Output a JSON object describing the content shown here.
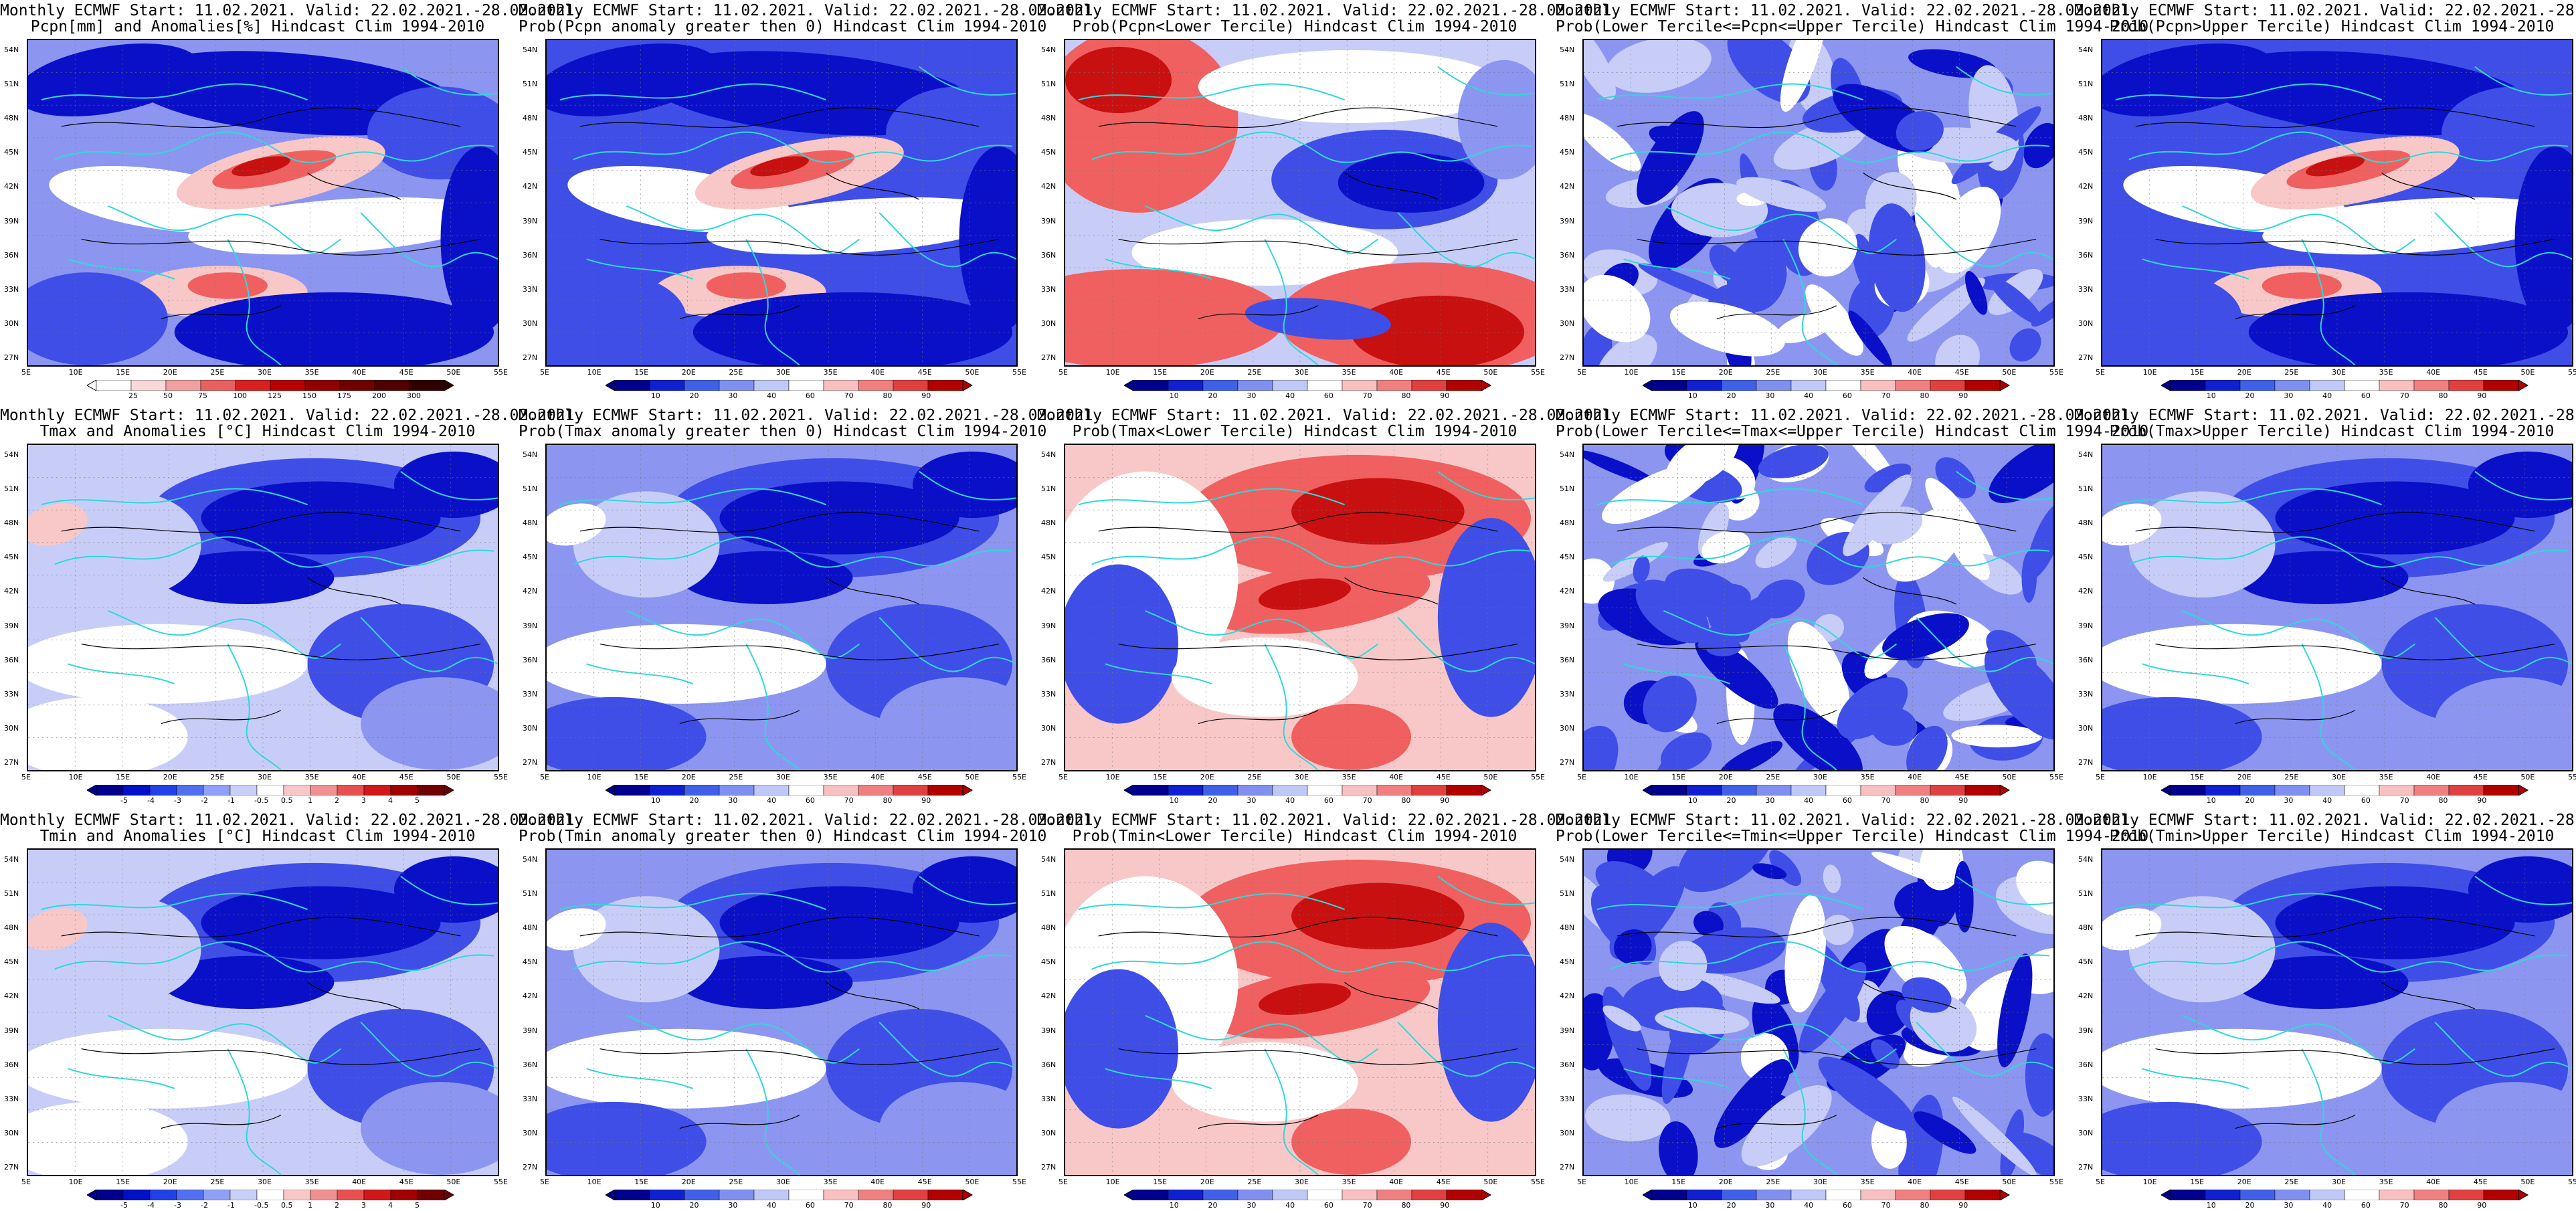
{
  "common": {
    "title_line1": "Monthly ECMWF Start: 11.02.2021. Valid: 22.02.2021.-28.02.2021.",
    "lat_labels": [
      "54N",
      "51N",
      "48N",
      "45N",
      "42N",
      "39N",
      "36N",
      "33N",
      "30N",
      "27N"
    ],
    "lon_labels": [
      "5E",
      "10E",
      "15E",
      "20E",
      "25E",
      "30E",
      "35E",
      "40E",
      "45E",
      "50E",
      "55E"
    ],
    "prob_ticks": [
      "10",
      "20",
      "30",
      "40",
      "60",
      "70",
      "80",
      "90"
    ],
    "palette": {
      "deep_blue": "#0a10c8",
      "blue": "#3f4ee6",
      "mid_blue": "#8c96f0",
      "light_blue": "#c8cdf8",
      "white": "#ffffff",
      "light_red": "#f8c8c8",
      "red": "#f06060",
      "deep_red": "#c81010",
      "coast": "#30d8d8",
      "contour": "#000000"
    }
  },
  "panels": [
    {
      "row": 0,
      "col": 0,
      "title2": "Pcpn[mm] and Anomalies[%] Hindcast Clim 1994-2010",
      "kind": "anom_pcpn",
      "ticks": [
        "25",
        "50",
        "75",
        "100",
        "125",
        "150",
        "175",
        "200",
        "300"
      ]
    },
    {
      "row": 0,
      "col": 1,
      "title2": "Prob(Pcpn anomaly greater then 0) Hindcast Clim 1994-2010",
      "kind": "prob_pos"
    },
    {
      "row": 0,
      "col": 2,
      "title2": "Prob(Pcpn<Lower Tercile) Hindcast Clim 1994-2010",
      "kind": "prob_lower_pcpn"
    },
    {
      "row": 0,
      "col": 3,
      "title2": "Prob(Lower Tercile<=Pcpn<=Upper Tercile) Hindcast Clim 1994-2010",
      "kind": "prob_mid"
    },
    {
      "row": 0,
      "col": 4,
      "title2": "Prob(Pcpn>Upper Tercile) Hindcast Clim 1994-2010",
      "kind": "prob_pos"
    },
    {
      "row": 1,
      "col": 0,
      "title2": "Tmax and Anomalies [°C] Hindcast Clim 1994-2010",
      "kind": "anom_t",
      "ticks": [
        "-5",
        "-4",
        "-3",
        "-2",
        "-1",
        "-0.5",
        "0.5",
        "1",
        "2",
        "3",
        "4",
        "5"
      ]
    },
    {
      "row": 1,
      "col": 1,
      "title2": "Prob(Tmax anomaly greater then 0) Hindcast Clim 1994-2010",
      "kind": "prob_cold"
    },
    {
      "row": 1,
      "col": 2,
      "title2": "Prob(Tmax<Lower Tercile) Hindcast Clim 1994-2010",
      "kind": "prob_lower_t"
    },
    {
      "row": 1,
      "col": 3,
      "title2": "Prob(Lower Tercile<=Tmax<=Upper Tercile) Hindcast Clim 1994-2010",
      "kind": "prob_mid"
    },
    {
      "row": 1,
      "col": 4,
      "title2": "Prob(Tmax>Upper Tercile) Hindcast Clim 1994-2010",
      "kind": "prob_cold"
    },
    {
      "row": 2,
      "col": 0,
      "title2": "Tmin and Anomalies [°C] Hindcast Clim 1994-2010",
      "kind": "anom_t",
      "ticks": [
        "-5",
        "-4",
        "-3",
        "-2",
        "-1",
        "-0.5",
        "0.5",
        "1",
        "2",
        "3",
        "4",
        "5"
      ]
    },
    {
      "row": 2,
      "col": 1,
      "title2": "Prob(Tmin anomaly greater then 0) Hindcast Clim 1994-2010",
      "kind": "prob_cold"
    },
    {
      "row": 2,
      "col": 2,
      "title2": "Prob(Tmin<Lower Tercile) Hindcast Clim 1994-2010",
      "kind": "prob_lower_t"
    },
    {
      "row": 2,
      "col": 3,
      "title2": "Prob(Lower Tercile<=Tmin<=Upper Tercile) Hindcast Clim 1994-2010",
      "kind": "prob_mid"
    },
    {
      "row": 2,
      "col": 4,
      "title2": "Prob(Tmin>Upper Tercile) Hindcast Clim 1994-2010",
      "kind": "prob_cold"
    }
  ]
}
